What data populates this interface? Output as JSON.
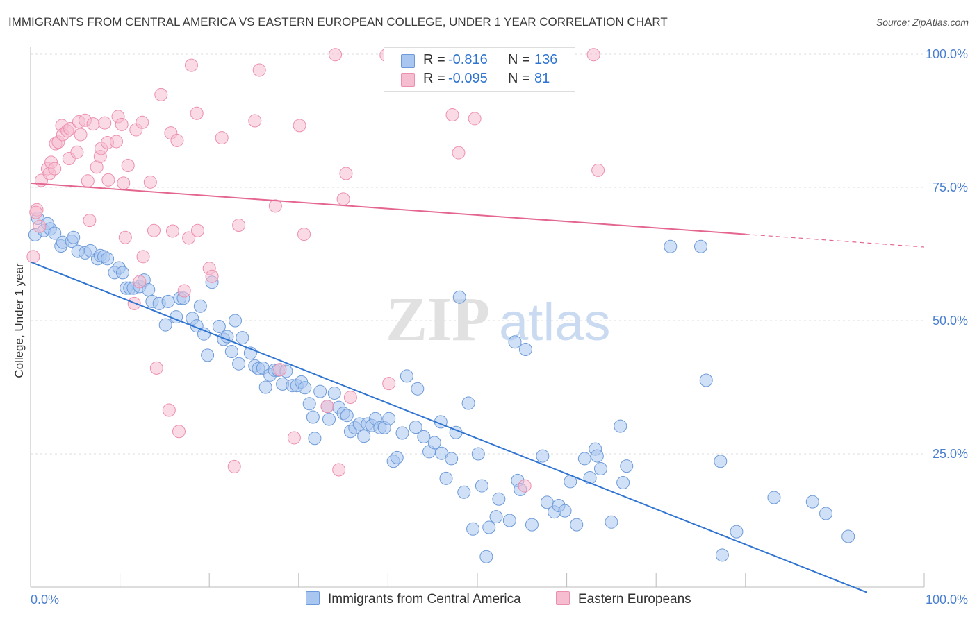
{
  "header": {
    "title": "IMMIGRANTS FROM CENTRAL AMERICA VS EASTERN EUROPEAN COLLEGE, UNDER 1 YEAR CORRELATION CHART",
    "source": "Source: ZipAtlas.com"
  },
  "watermark": {
    "part1": "ZIP",
    "part2": "atlas"
  },
  "legend": {
    "r_label": "R =",
    "n_label": "N =",
    "series": [
      {
        "r": "-0.816",
        "n": "136"
      },
      {
        "r": "-0.095",
        "n": "81"
      }
    ]
  },
  "colors": {
    "blue_fill": "#a9c6f0",
    "blue_stroke": "#6d9ad8",
    "blue_line": "#2f74d0",
    "pink_fill": "#f6bcd0",
    "pink_stroke": "#ec8fae",
    "pink_line": "#e4668f",
    "axis_text": "#4a7fd0",
    "grid": "#dddddd"
  },
  "chart_data": {
    "type": "scatter",
    "title": "IMMIGRANTS FROM CENTRAL AMERICA VS EASTERN EUROPEAN COLLEGE, UNDER 1 YEAR CORRELATION CHART",
    "xlabel": "",
    "ylabel": "College, Under 1 year",
    "xlim": [
      0,
      100
    ],
    "ylim": [
      0,
      100
    ],
    "x_tick_labels": [
      "0.0%",
      "100.0%"
    ],
    "y_tick_labels": [
      "100.0%",
      "75.0%",
      "50.0%",
      "25.0%"
    ],
    "y_ticks": [
      100,
      75,
      50,
      25
    ],
    "grid": true,
    "legend_position": "top-center",
    "series": [
      {
        "name": "Immigrants from Central America",
        "R": -0.816,
        "N": 136,
        "trend": {
          "x": [
            0,
            93.6
          ],
          "y": [
            61.0,
            -1.0
          ],
          "solid_to": 93.6
        },
        "points": [
          [
            0.5,
            66.1
          ],
          [
            0.8,
            69.2
          ],
          [
            1.5,
            66.9
          ],
          [
            1.9,
            68.2
          ],
          [
            2.2,
            67.2
          ],
          [
            2.7,
            66.4
          ],
          [
            3.4,
            64.0
          ],
          [
            3.6,
            64.7
          ],
          [
            4.6,
            64.9
          ],
          [
            4.8,
            65.6
          ],
          [
            5.3,
            63.0
          ],
          [
            6.1,
            62.7
          ],
          [
            6.7,
            63.1
          ],
          [
            7.5,
            61.6
          ],
          [
            7.8,
            62.2
          ],
          [
            8.2,
            62.0
          ],
          [
            8.6,
            61.6
          ],
          [
            9.4,
            59.0
          ],
          [
            9.9,
            59.9
          ],
          [
            10.3,
            59.0
          ],
          [
            10.7,
            56.1
          ],
          [
            11.1,
            56.1
          ],
          [
            11.5,
            56.1
          ],
          [
            12.2,
            56.4
          ],
          [
            12.7,
            57.6
          ],
          [
            13.2,
            55.8
          ],
          [
            13.6,
            53.6
          ],
          [
            14.4,
            53.2
          ],
          [
            15.1,
            49.2
          ],
          [
            15.4,
            53.6
          ],
          [
            16.3,
            50.7
          ],
          [
            16.7,
            54.2
          ],
          [
            17.1,
            54.2
          ],
          [
            18.1,
            50.4
          ],
          [
            18.6,
            49.0
          ],
          [
            19.0,
            52.7
          ],
          [
            19.4,
            47.5
          ],
          [
            19.8,
            43.5
          ],
          [
            20.3,
            57.2
          ],
          [
            21.1,
            48.9
          ],
          [
            21.6,
            46.5
          ],
          [
            22.0,
            47.0
          ],
          [
            22.5,
            44.2
          ],
          [
            22.9,
            50.0
          ],
          [
            23.3,
            41.9
          ],
          [
            23.7,
            46.8
          ],
          [
            24.6,
            43.9
          ],
          [
            25.1,
            41.5
          ],
          [
            25.5,
            41.0
          ],
          [
            26.0,
            41.1
          ],
          [
            26.3,
            37.5
          ],
          [
            26.8,
            39.8
          ],
          [
            27.3,
            40.7
          ],
          [
            27.7,
            40.7
          ],
          [
            28.2,
            38.1
          ],
          [
            28.6,
            40.5
          ],
          [
            29.3,
            37.8
          ],
          [
            29.8,
            37.8
          ],
          [
            30.3,
            38.5
          ],
          [
            30.7,
            37.4
          ],
          [
            31.2,
            34.4
          ],
          [
            31.6,
            31.9
          ],
          [
            31.8,
            27.9
          ],
          [
            32.4,
            36.7
          ],
          [
            33.2,
            33.9
          ],
          [
            33.4,
            31.5
          ],
          [
            34.0,
            36.4
          ],
          [
            34.5,
            33.7
          ],
          [
            35.0,
            32.6
          ],
          [
            35.4,
            32.2
          ],
          [
            35.8,
            29.2
          ],
          [
            36.3,
            29.9
          ],
          [
            36.8,
            30.6
          ],
          [
            37.3,
            28.3
          ],
          [
            37.7,
            30.6
          ],
          [
            38.2,
            30.3
          ],
          [
            38.6,
            31.6
          ],
          [
            39.1,
            29.9
          ],
          [
            39.6,
            29.9
          ],
          [
            40.1,
            31.6
          ],
          [
            40.6,
            23.6
          ],
          [
            41.0,
            24.3
          ],
          [
            41.6,
            28.9
          ],
          [
            42.1,
            39.6
          ],
          [
            43.1,
            30.0
          ],
          [
            43.3,
            37.2
          ],
          [
            44.0,
            28.2
          ],
          [
            44.6,
            25.4
          ],
          [
            45.2,
            27.1
          ],
          [
            45.9,
            31.0
          ],
          [
            46.0,
            25.1
          ],
          [
            46.5,
            20.4
          ],
          [
            47.1,
            24.1
          ],
          [
            47.6,
            29.0
          ],
          [
            48.0,
            54.4
          ],
          [
            48.5,
            17.8
          ],
          [
            49.0,
            34.5
          ],
          [
            49.5,
            10.9
          ],
          [
            50.1,
            25.0
          ],
          [
            50.5,
            19.0
          ],
          [
            51.0,
            5.7
          ],
          [
            51.3,
            11.2
          ],
          [
            52.1,
            13.2
          ],
          [
            52.4,
            16.5
          ],
          [
            53.6,
            12.5
          ],
          [
            54.2,
            46.0
          ],
          [
            54.5,
            20.0
          ],
          [
            54.8,
            18.3
          ],
          [
            55.4,
            44.6
          ],
          [
            56.1,
            11.7
          ],
          [
            57.3,
            24.6
          ],
          [
            57.8,
            15.9
          ],
          [
            58.6,
            14.1
          ],
          [
            59.1,
            15.3
          ],
          [
            59.8,
            14.3
          ],
          [
            60.4,
            19.8
          ],
          [
            61.1,
            11.7
          ],
          [
            62.0,
            24.1
          ],
          [
            62.6,
            20.5
          ],
          [
            63.2,
            25.9
          ],
          [
            63.4,
            24.6
          ],
          [
            63.8,
            22.2
          ],
          [
            65.0,
            12.2
          ],
          [
            66.0,
            30.2
          ],
          [
            66.3,
            19.6
          ],
          [
            66.7,
            22.7
          ],
          [
            71.6,
            63.9
          ],
          [
            75.0,
            63.9
          ],
          [
            75.6,
            38.8
          ],
          [
            77.2,
            23.6
          ],
          [
            77.4,
            6.0
          ],
          [
            79.0,
            10.4
          ],
          [
            83.2,
            16.8
          ],
          [
            87.5,
            16.0
          ],
          [
            89.0,
            13.8
          ],
          [
            91.5,
            9.5
          ]
        ]
      },
      {
        "name": "Eastern Europeans",
        "R": -0.095,
        "N": 81,
        "trend": {
          "x": [
            0,
            100
          ],
          "y": [
            75.8,
            63.8
          ],
          "solid_to": 80.0
        },
        "points": [
          [
            0.7,
            70.8
          ],
          [
            1.0,
            67.7
          ],
          [
            1.2,
            76.3
          ],
          [
            1.9,
            78.5
          ],
          [
            2.1,
            77.6
          ],
          [
            2.3,
            79.7
          ],
          [
            2.7,
            78.5
          ],
          [
            2.8,
            83.2
          ],
          [
            3.1,
            83.5
          ],
          [
            3.5,
            86.6
          ],
          [
            3.6,
            84.9
          ],
          [
            4.1,
            85.6
          ],
          [
            4.3,
            80.4
          ],
          [
            4.4,
            86.0
          ],
          [
            5.2,
            81.6
          ],
          [
            5.4,
            87.3
          ],
          [
            5.6,
            84.9
          ],
          [
            6.1,
            87.6
          ],
          [
            6.4,
            76.2
          ],
          [
            6.6,
            68.8
          ],
          [
            7.0,
            86.9
          ],
          [
            7.4,
            78.8
          ],
          [
            7.8,
            80.8
          ],
          [
            7.9,
            82.3
          ],
          [
            8.3,
            87.1
          ],
          [
            8.6,
            83.4
          ],
          [
            8.7,
            76.4
          ],
          [
            9.6,
            83.6
          ],
          [
            9.8,
            88.3
          ],
          [
            10.2,
            86.8
          ],
          [
            10.4,
            75.8
          ],
          [
            10.6,
            65.6
          ],
          [
            10.9,
            79.1
          ],
          [
            11.6,
            53.2
          ],
          [
            11.8,
            85.8
          ],
          [
            12.2,
            57.3
          ],
          [
            12.5,
            87.2
          ],
          [
            12.6,
            62.0
          ],
          [
            13.4,
            76.0
          ],
          [
            13.8,
            66.9
          ],
          [
            14.1,
            41.1
          ],
          [
            14.6,
            92.4
          ],
          [
            15.5,
            33.2
          ],
          [
            15.7,
            85.2
          ],
          [
            15.9,
            66.8
          ],
          [
            16.4,
            83.8
          ],
          [
            16.6,
            29.2
          ],
          [
            17.2,
            55.6
          ],
          [
            17.7,
            65.5
          ],
          [
            18.0,
            97.9
          ],
          [
            18.6,
            88.9
          ],
          [
            18.7,
            66.9
          ],
          [
            20.0,
            59.8
          ],
          [
            20.3,
            58.3
          ],
          [
            21.4,
            84.3
          ],
          [
            22.8,
            22.6
          ],
          [
            23.3,
            67.9
          ],
          [
            25.1,
            87.5
          ],
          [
            25.6,
            97.0
          ],
          [
            27.4,
            71.5
          ],
          [
            27.9,
            40.8
          ],
          [
            29.5,
            28.0
          ],
          [
            30.1,
            86.6
          ],
          [
            30.6,
            66.2
          ],
          [
            33.2,
            33.9
          ],
          [
            34.1,
            99.9
          ],
          [
            34.5,
            22.0
          ],
          [
            35.0,
            72.8
          ],
          [
            35.3,
            77.6
          ],
          [
            35.8,
            35.6
          ],
          [
            39.8,
            99.8
          ],
          [
            40.1,
            38.2
          ],
          [
            43.7,
            99.8
          ],
          [
            47.2,
            88.6
          ],
          [
            47.9,
            81.5
          ],
          [
            49.7,
            87.9
          ],
          [
            55.3,
            19.0
          ],
          [
            63.0,
            99.9
          ],
          [
            63.5,
            78.2
          ],
          [
            0.3,
            62.0
          ],
          [
            0.6,
            70.3
          ]
        ]
      }
    ]
  },
  "bottom_legend": {
    "items": [
      "Immigrants from Central America",
      "Eastern Europeans"
    ]
  }
}
